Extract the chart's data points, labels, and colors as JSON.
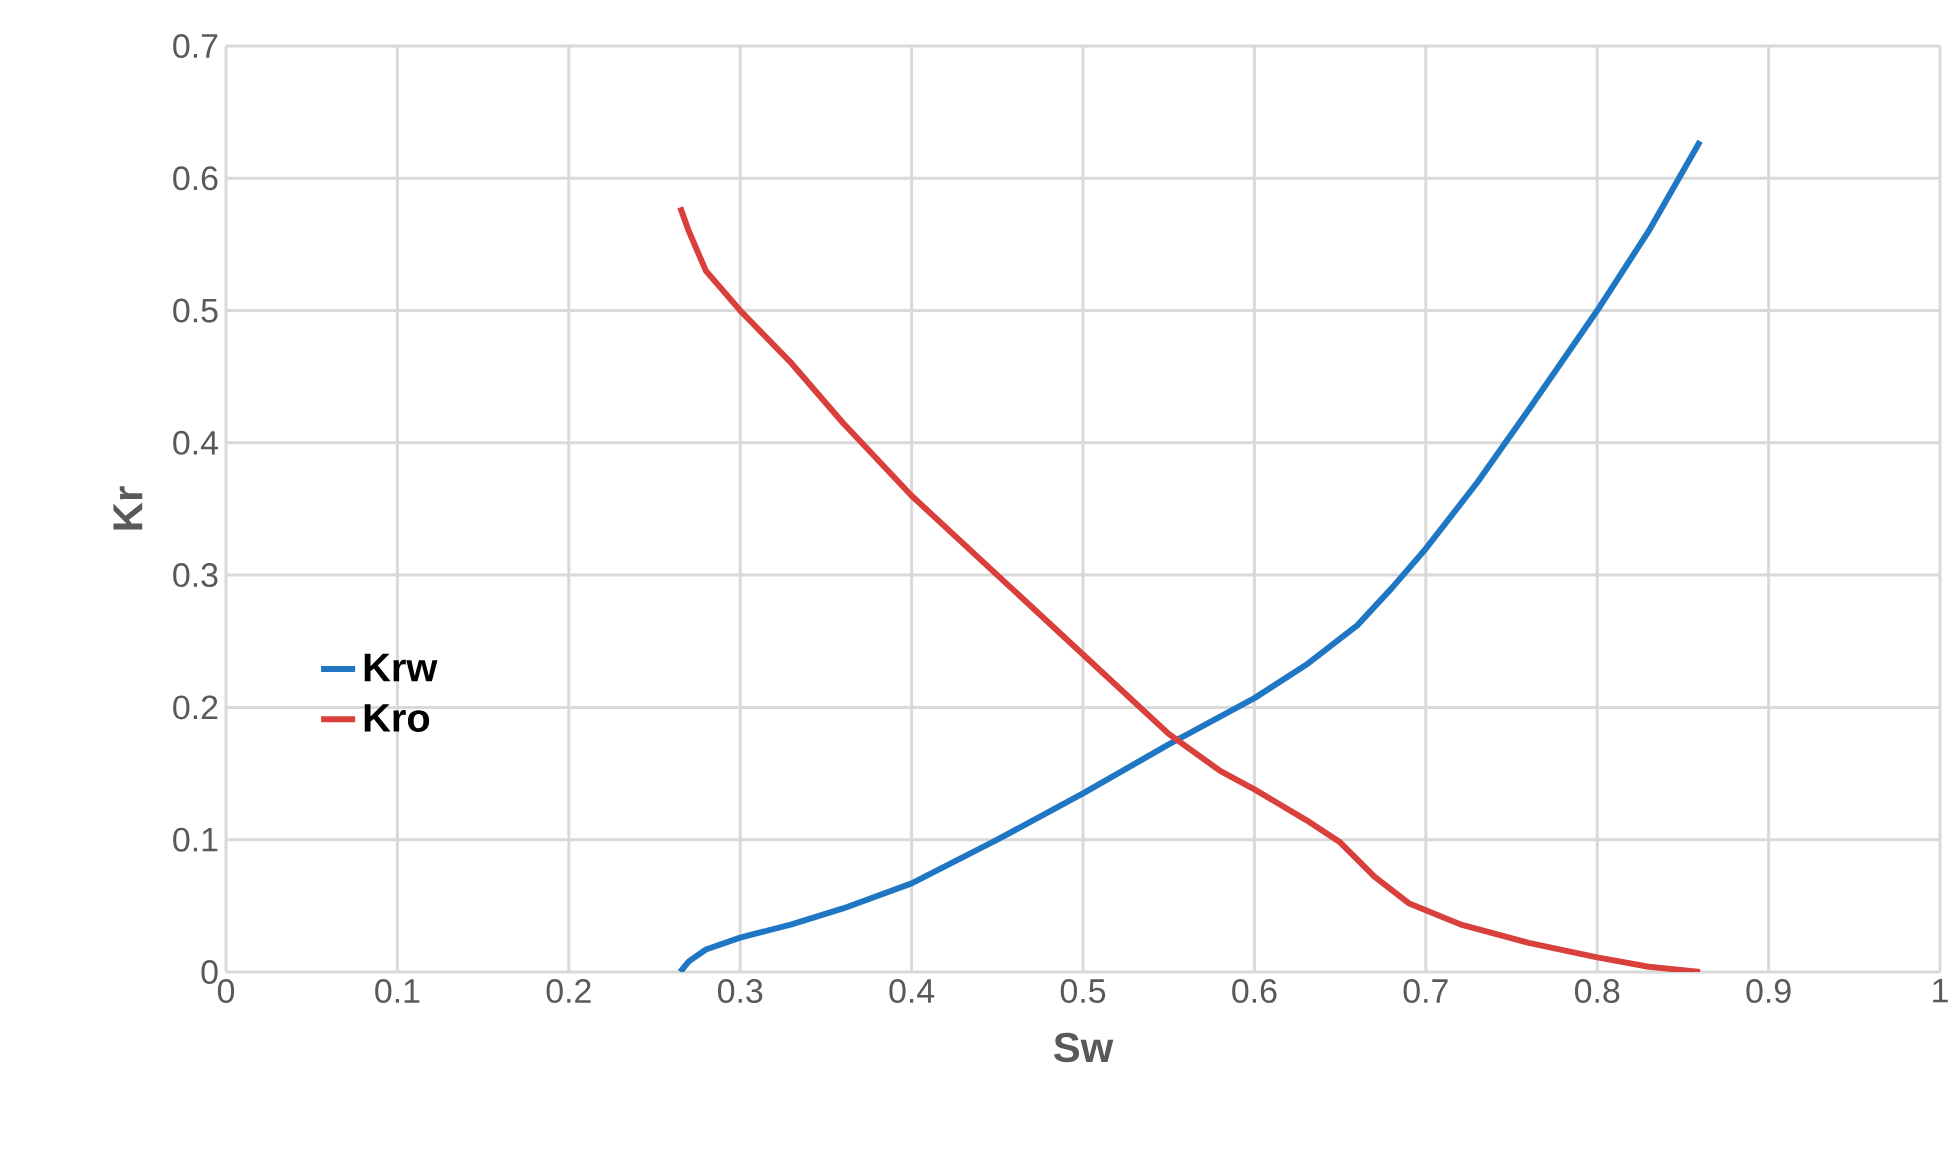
{
  "chart_data": {
    "type": "line",
    "xlabel": "Sw",
    "ylabel": "Kr",
    "series": [
      {
        "name": "Krw",
        "color": "#1f77c4",
        "x": [
          0.265,
          0.27,
          0.28,
          0.3,
          0.33,
          0.36,
          0.4,
          0.45,
          0.5,
          0.55,
          0.6,
          0.63,
          0.66,
          0.68,
          0.7,
          0.73,
          0.76,
          0.8,
          0.83,
          0.86
        ],
        "values": [
          0,
          0.008,
          0.017,
          0.026,
          0.036,
          0.048,
          0.067,
          0.1,
          0.135,
          0.172,
          0.207,
          0.232,
          0.262,
          0.29,
          0.32,
          0.37,
          0.425,
          0.5,
          0.56,
          0.628
        ]
      },
      {
        "name": "Kro",
        "color": "#d9403b",
        "x": [
          0.265,
          0.27,
          0.28,
          0.3,
          0.33,
          0.36,
          0.4,
          0.45,
          0.5,
          0.55,
          0.58,
          0.6,
          0.63,
          0.65,
          0.67,
          0.69,
          0.72,
          0.76,
          0.8,
          0.83,
          0.86
        ],
        "values": [
          0.578,
          0.56,
          0.53,
          0.5,
          0.46,
          0.415,
          0.36,
          0.3,
          0.24,
          0.18,
          0.152,
          0.138,
          0.115,
          0.098,
          0.072,
          0.052,
          0.036,
          0.022,
          0.011,
          0.004,
          0
        ]
      }
    ],
    "xlim": [
      0,
      1
    ],
    "ylim": [
      0,
      0.7
    ],
    "xticks": [
      0,
      0.1,
      0.2,
      0.3,
      0.4,
      0.5,
      0.6,
      0.7,
      0.8,
      0.9,
      1
    ],
    "yticks": [
      0,
      0.1,
      0.2,
      0.3,
      0.4,
      0.5,
      0.6,
      0.7
    ],
    "grid": true,
    "legend": "left",
    "marker": "none",
    "line_style": "solid"
  }
}
